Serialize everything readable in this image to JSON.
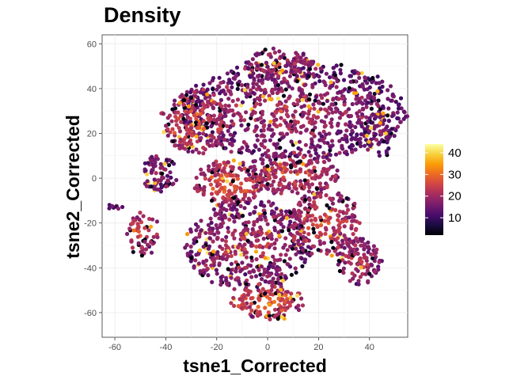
{
  "chart_data": {
    "type": "scatter",
    "title": "Density",
    "xlabel": "tsne1_Corrected",
    "ylabel": "tsne2_Corrected",
    "xlim": [
      -65,
      55
    ],
    "ylim": [
      -71,
      64
    ],
    "x_ticks": [
      -60,
      -40,
      -20,
      0,
      20,
      40
    ],
    "y_ticks": [
      -60,
      -40,
      -20,
      0,
      20,
      40,
      60
    ],
    "grid": true,
    "colorscale": {
      "name": "inferno",
      "min": 2,
      "max": 44,
      "ticks": [
        10,
        20,
        30,
        40
      ],
      "stops": [
        "#000004",
        "#1b0c41",
        "#4a0c6b",
        "#781c6d",
        "#a52c60",
        "#cf4446",
        "#ed6925",
        "#fb9b06",
        "#f7d13d",
        "#fcffa4"
      ],
      "legend_position": "right"
    },
    "clusters": [
      {
        "cx": 10,
        "cy": 30,
        "rx": 45,
        "ry": 22,
        "n": 900,
        "density": 17
      },
      {
        "cx": -28,
        "cy": 25,
        "rx": 14,
        "ry": 14,
        "n": 200,
        "density": 22
      },
      {
        "cx": 5,
        "cy": 50,
        "rx": 14,
        "ry": 8,
        "n": 120,
        "density": 19
      },
      {
        "cx": -15,
        "cy": -2,
        "rx": 14,
        "ry": 10,
        "n": 180,
        "density": 23
      },
      {
        "cx": 10,
        "cy": 2,
        "rx": 18,
        "ry": 10,
        "n": 220,
        "density": 21
      },
      {
        "cx": -8,
        "cy": -30,
        "rx": 25,
        "ry": 20,
        "n": 500,
        "density": 18
      },
      {
        "cx": 22,
        "cy": -20,
        "rx": 14,
        "ry": 15,
        "n": 220,
        "density": 21
      },
      {
        "cx": -43,
        "cy": 2,
        "rx": 7,
        "ry": 8,
        "n": 80,
        "density": 16
      },
      {
        "cx": -50,
        "cy": -24,
        "rx": 7,
        "ry": 10,
        "n": 60,
        "density": 21
      },
      {
        "cx": 36,
        "cy": -37,
        "rx": 9,
        "ry": 10,
        "n": 110,
        "density": 19
      },
      {
        "cx": 0,
        "cy": -55,
        "rx": 14,
        "ry": 8,
        "n": 140,
        "density": 24
      },
      {
        "cx": -60,
        "cy": -12,
        "rx": 2,
        "ry": 1.5,
        "n": 8,
        "density": 14
      },
      {
        "cx": 44,
        "cy": 20,
        "rx": 6,
        "ry": 10,
        "n": 50,
        "density": 15
      }
    ]
  }
}
